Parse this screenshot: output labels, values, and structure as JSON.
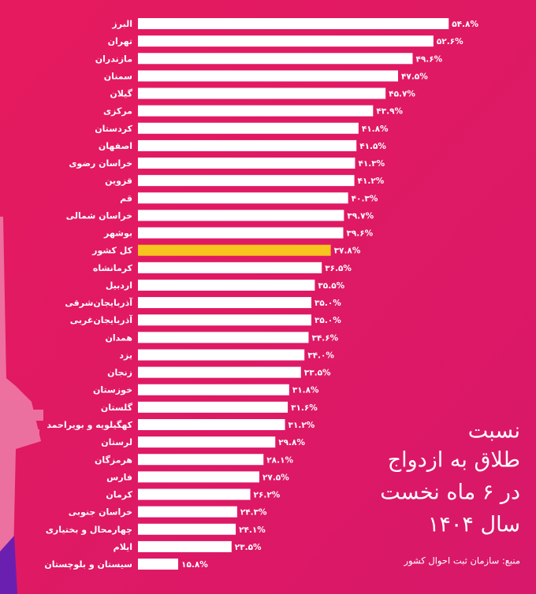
{
  "chart_data": {
    "type": "hbar",
    "title_lines": [
      "نسبت",
      "طلاق به ازدواج",
      "در ۶ ماه نخست",
      "سال ۱۴۰۴"
    ],
    "source": "منبع: سازمان ثبت احوال کشور",
    "categories": [
      "البرز",
      "تهران",
      "مازندران",
      "سمنان",
      "گیلان",
      "مرکزی",
      "کردستان",
      "اصفهان",
      "خراسان رضوی",
      "قزوین",
      "قم",
      "خراسان شمالی",
      "بوشهر",
      "کل کشور",
      "کرمانشاه",
      "اردبیل",
      "آذربایجان‌شرقی",
      "آذربایجان‌غربی",
      "همدان",
      "یزد",
      "زنجان",
      "خوزستان",
      "گلستان",
      "کهگیلویه و بویراحمد",
      "لرستان",
      "هرمزگان",
      "فارس",
      "کرمان",
      "خراسان جنوبی",
      "چهارمحال و بختیاری",
      "ایلام",
      "سیستان و بلوچستان"
    ],
    "values": [
      54.8,
      52.6,
      49.6,
      47.5,
      45.7,
      43.9,
      41.8,
      41.5,
      41.3,
      41.2,
      40.3,
      39.7,
      39.6,
      37.8,
      36.5,
      35.5,
      35.0,
      35.0,
      34.6,
      34.0,
      33.5,
      31.8,
      31.6,
      31.2,
      29.8,
      28.1,
      27.5,
      26.2,
      24.3,
      24.1,
      23.5,
      15.8
    ],
    "value_labels": [
      "۵۴.۸%",
      "۵۲.۶%",
      "۴۹.۶%",
      "۴۷.۵%",
      "۴۵.۷%",
      "۴۳.۹%",
      "۴۱.۸%",
      "۴۱.۵%",
      "۴۱.۳%",
      "۴۱.۲%",
      "۴۰.۳%",
      "۳۹.۷%",
      "۳۹.۶%",
      "۳۷.۸%",
      "۳۶.۵%",
      "۳۵.۵%",
      "۳۵.۰%",
      "۳۵.۰%",
      "۳۴.۶%",
      "۳۴.۰%",
      "۳۳.۵%",
      "۳۱.۸%",
      "۳۱.۶%",
      "۳۱.۲%",
      "۲۹.۸%",
      "۲۸.۱%",
      "۲۷.۵%",
      "۲۶.۲%",
      "۲۴.۳%",
      "۲۴.۱%",
      "۲۳.۵%",
      "۱۵.۸%"
    ],
    "colors": [
      "#ffffff",
      "#ffffff",
      "#ffffff",
      "#ffffff",
      "#ffffff",
      "#ffffff",
      "#ffffff",
      "#ffffff",
      "#ffffff",
      "#ffffff",
      "#ffffff",
      "#ffffff",
      "#ffffff",
      "#f7c51e",
      "#ffffff",
      "#ffffff",
      "#ffffff",
      "#ffffff",
      "#ffffff",
      "#ffffff",
      "#ffffff",
      "#ffffff",
      "#ffffff",
      "#ffffff",
      "#ffffff",
      "#ffffff",
      "#ffffff",
      "#ffffff",
      "#ffffff",
      "#ffffff",
      "#ffffff",
      "#ffffff"
    ],
    "xlim": [
      10,
      60
    ]
  }
}
